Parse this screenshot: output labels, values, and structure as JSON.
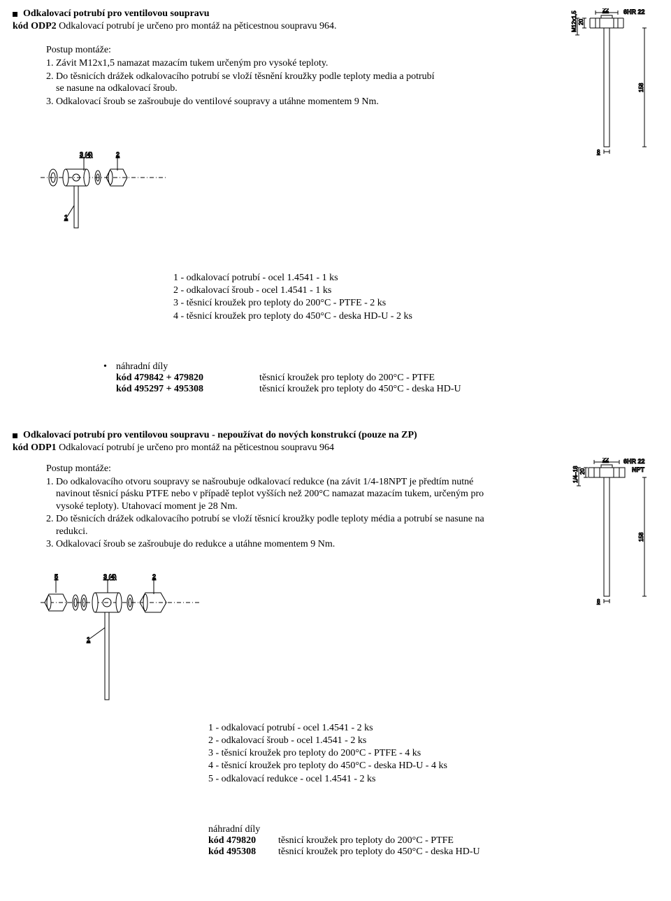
{
  "section1": {
    "title": "Odkalovací potrubí pro ventilovou soupravu",
    "code_label": "kód ODP2",
    "code_desc": "Odkalovací potrubí je určeno pro montáž na pěticestnou soupravu 964.",
    "steps_title": "Postup montáže:",
    "steps": [
      "1. Závit M12x1,5 namazat mazacím tukem určeným pro vysoké teploty.",
      "2. Do těsnicích drážek odkalovacího potrubí se vloží těsnění kroužky podle teploty media a potrubí se nasune na odkalovací šroub.",
      "3. Odkalovací šroub se zašroubuje do ventilové soupravy a utáhne momentem 9 Nm."
    ],
    "parts": [
      "1 - odkalovací potrubí - ocel 1.4541 - 1 ks",
      "2 - odkalovací šroub - ocel 1.4541 - 1 ks",
      "3 - těsnicí kroužek pro teploty do 200°C - PTFE - 2 ks",
      "4 - těsnicí kroužek pro teploty do 450°C - deska HD-U - 2 ks"
    ],
    "spare_title": "náhradní díly",
    "spare_items": [
      {
        "code": "kód 479842 + 479820",
        "desc": "těsnicí kroužek pro teploty do 200°C - PTFE"
      },
      {
        "code": "kód 495297 + 495308",
        "desc": "těsnicí kroužek pro teploty do 450°C - deska HD-U"
      }
    ],
    "drawing": {
      "dim_top": "22",
      "dim_top_label": "6HR 22",
      "dim_left_top": "20",
      "dim_thread": "M12x1,5",
      "dim_height": "158",
      "dim_bottom": "8"
    },
    "exploded_labels": {
      "l1": "1",
      "l2": "2",
      "l3": "3 (4)"
    }
  },
  "section2": {
    "title": "Odkalovací potrubí pro ventilovou soupravu - nepoužívat do nových konstrukcí (pouze na ZP)",
    "code_label": "kód ODP1",
    "code_desc": "Odkalovací potrubí je určeno pro montáž na pěticestnou soupravu 964",
    "steps_title": "Postup montáže:",
    "steps": [
      "1. Do odkalovacího otvoru soupravy se našroubuje odkalovací redukce (na závit 1/4-18NPT je předtím nutné navinout těsnicí pásku PTFE nebo v případě teplot vyšších než 200°C namazat mazacím tukem, určeným pro vysoké teploty). Utahovací moment je 28 Nm.",
      "2. Do těsnicích drážek odkalovacího potrubí se vloží těsnicí kroužky podle teploty média a potrubí se nasune na redukci.",
      "3. Odkalovací šroub se zašroubuje do redukce a utáhne momentem 9 Nm."
    ],
    "parts": [
      "1 - odkalovací potrubí - ocel 1.4541 - 2 ks",
      "2 - odkalovací šroub  - ocel 1.4541 - 2 ks",
      "3 - těsnicí kroužek pro teploty do 200°C - PTFE - 4 ks",
      "4 - těsnicí kroužek pro teploty do 450°C - deska HD-U - 4 ks",
      "5 - odkalovací redukce - ocel 1.4541 - 2 ks"
    ],
    "spare_title": "náhradní díly",
    "spare_items": [
      {
        "code": "kód 479820",
        "desc": "těsnicí kroužek pro teploty do 200°C - PTFE"
      },
      {
        "code": "kód 495308",
        "desc": "těsnicí kroužek pro teploty do 450°C - deska HD-U"
      }
    ],
    "drawing": {
      "dim_top": "22",
      "dim_top_label": "6HR 22",
      "dim_left_top": "20",
      "dim_thread": "1/4–18",
      "dim_npt": "NPT",
      "dim_height": "158",
      "dim_bottom": "8"
    },
    "exploded_labels": {
      "l1": "1",
      "l2": "2",
      "l3": "3 (4)",
      "l5": "5"
    }
  }
}
